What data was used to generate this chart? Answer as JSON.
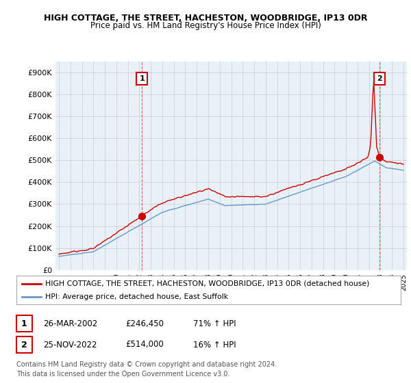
{
  "title": "HIGH COTTAGE, THE STREET, HACHESTON, WOODBRIDGE, IP13 0DR",
  "subtitle": "Price paid vs. HM Land Registry's House Price Index (HPI)",
  "ylim": [
    0,
    950000
  ],
  "yticks": [
    0,
    100000,
    200000,
    300000,
    400000,
    500000,
    600000,
    700000,
    800000,
    900000
  ],
  "ytick_labels": [
    "£0",
    "£100K",
    "£200K",
    "£300K",
    "£400K",
    "£500K",
    "£600K",
    "£700K",
    "£800K",
    "£900K"
  ],
  "red_color": "#cc0000",
  "blue_color": "#6699cc",
  "chart_bg": "#e8f0f8",
  "marker1_date": 2002.23,
  "marker1_price": 246450,
  "marker2_date": 2022.9,
  "marker2_price": 514000,
  "legend_red": "HIGH COTTAGE, THE STREET, HACHESTON, WOODBRIDGE, IP13 0DR (detached house)",
  "legend_blue": "HPI: Average price, detached house, East Suffolk",
  "table_row1": [
    "1",
    "26-MAR-2002",
    "£246,450",
    "71% ↑ HPI"
  ],
  "table_row2": [
    "2",
    "25-NOV-2022",
    "£514,000",
    "16% ↑ HPI"
  ],
  "footer1": "Contains HM Land Registry data © Crown copyright and database right 2024.",
  "footer2": "This data is licensed under the Open Government Licence v3.0.",
  "bg_color": "#ffffff",
  "grid_color": "#cccccc"
}
